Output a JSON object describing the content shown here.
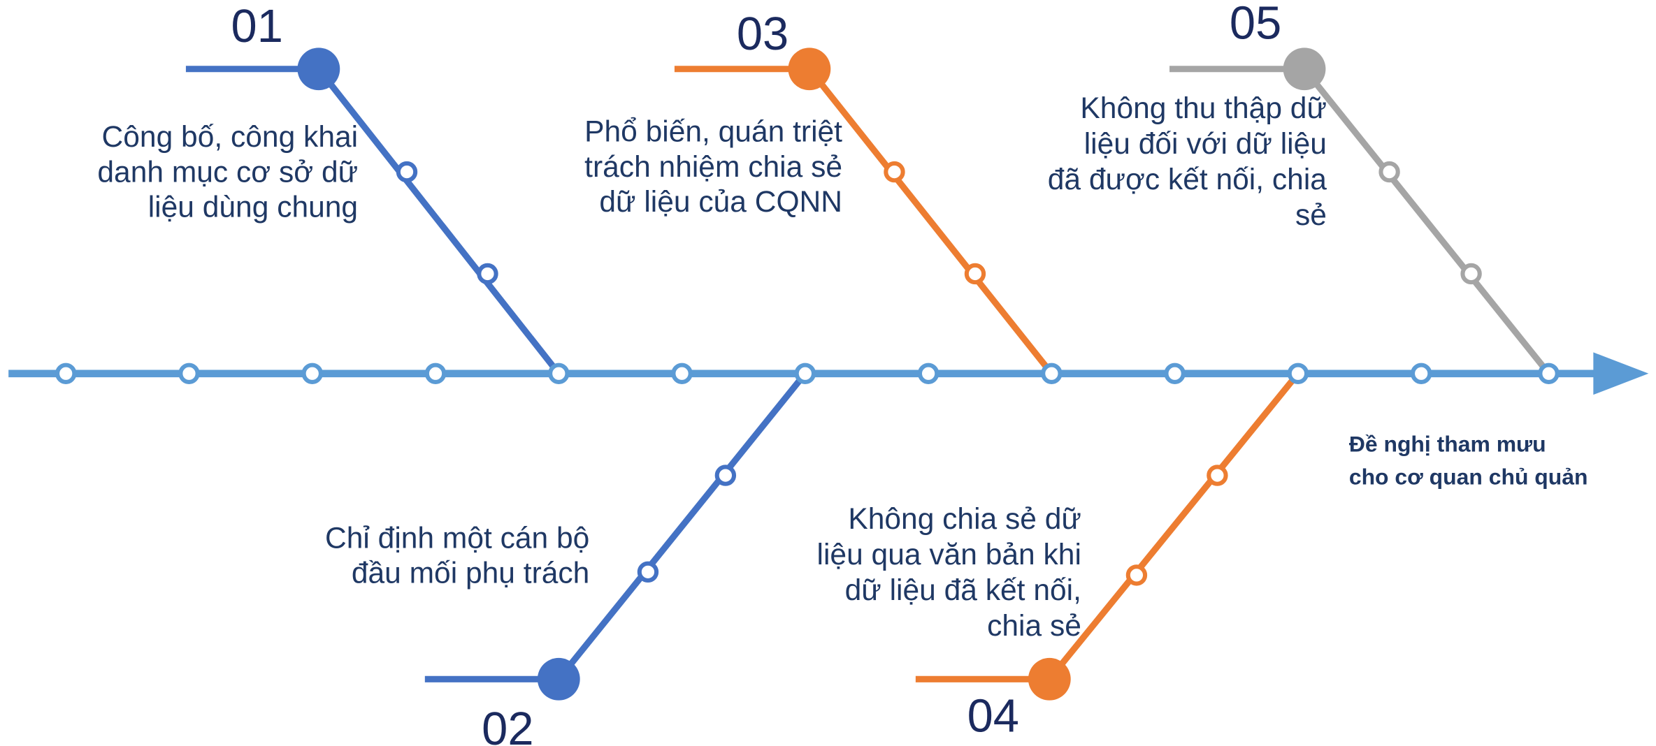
{
  "nodes": [
    {
      "number": "01",
      "lines": [
        "Công bố, công khai",
        "danh mục cơ sở dữ",
        "liệu dùng chung"
      ]
    },
    {
      "number": "02",
      "lines": [
        "Chỉ định một cán bộ",
        "đầu mối phụ trách"
      ]
    },
    {
      "number": "03",
      "lines": [
        "Phổ biến, quán triệt",
        "trách nhiệm chia sẻ",
        "dữ liệu của CQNN"
      ]
    },
    {
      "number": "04",
      "lines": [
        "Không chia sẻ dữ",
        "liệu qua văn bản khi",
        "dữ liệu đã kết nối,",
        "chia sẻ"
      ]
    },
    {
      "number": "05",
      "lines": [
        "Không thu thập dữ",
        "liệu đối với dữ liệu",
        "đã được kết nối, chia",
        "sẻ"
      ]
    }
  ],
  "goal": {
    "lines": [
      "Đề nghị tham mưu",
      "cho cơ quan chủ quản"
    ]
  }
}
